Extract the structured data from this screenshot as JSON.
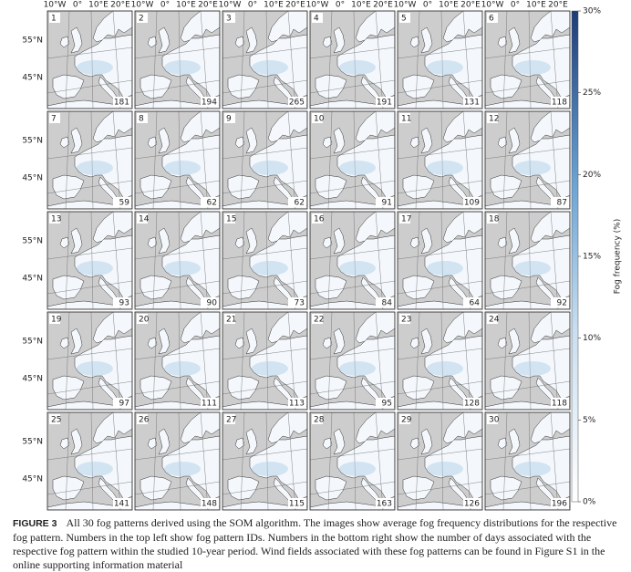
{
  "figure": {
    "lon_labels": [
      "10°W",
      "0°",
      "10°E",
      "20°E"
    ],
    "lat_labels": [
      "55°N",
      "45°N"
    ],
    "panels": [
      {
        "id": 1,
        "days": 181
      },
      {
        "id": 2,
        "days": 194
      },
      {
        "id": 3,
        "days": 265
      },
      {
        "id": 4,
        "days": 191
      },
      {
        "id": 5,
        "days": 131
      },
      {
        "id": 6,
        "days": 118
      },
      {
        "id": 7,
        "days": 59
      },
      {
        "id": 8,
        "days": 62
      },
      {
        "id": 9,
        "days": 62
      },
      {
        "id": 10,
        "days": 91
      },
      {
        "id": 11,
        "days": 109
      },
      {
        "id": 12,
        "days": 87
      },
      {
        "id": 13,
        "days": 93
      },
      {
        "id": 14,
        "days": 90
      },
      {
        "id": 15,
        "days": 73
      },
      {
        "id": 16,
        "days": 84
      },
      {
        "id": 17,
        "days": 64
      },
      {
        "id": 18,
        "days": 92
      },
      {
        "id": 19,
        "days": 97
      },
      {
        "id": 20,
        "days": 111
      },
      {
        "id": 21,
        "days": 113
      },
      {
        "id": 22,
        "days": 95
      },
      {
        "id": 23,
        "days": 128
      },
      {
        "id": 24,
        "days": 118
      },
      {
        "id": 25,
        "days": 141
      },
      {
        "id": 26,
        "days": 148
      },
      {
        "id": 27,
        "days": 115
      },
      {
        "id": 28,
        "days": 163
      },
      {
        "id": 29,
        "days": 126
      },
      {
        "id": 30,
        "days": 196
      }
    ],
    "colorbar": {
      "label": "Fog frequency (%)",
      "lim": [
        0,
        30
      ],
      "ticks": [
        {
          "value": 0,
          "label": "0%"
        },
        {
          "value": 5,
          "label": "5%"
        },
        {
          "value": 10,
          "label": "10%"
        },
        {
          "value": 15,
          "label": "15%"
        },
        {
          "value": 20,
          "label": "20%"
        },
        {
          "value": 25,
          "label": "25%"
        },
        {
          "value": 30,
          "label": "30%"
        }
      ]
    },
    "caption": {
      "label": "FIGURE 3",
      "text": "All 30 fog patterns derived using the SOM algorithm. The images show average fog frequency distributions for the respective fog pattern. Numbers in the top left show fog pattern IDs. Numbers in the bottom right show the number of days associated with the respective fog pattern within the studied 10-year period. Wind fields associated with these fog patterns can be found in Figure S1 in the online supporting information material"
    }
  }
}
